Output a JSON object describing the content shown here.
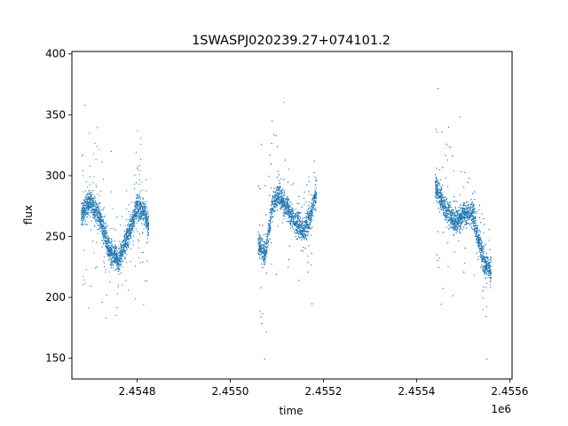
{
  "chart_data": {
    "type": "scatter",
    "title": "1SWASPJ020239.27+074101.2",
    "xlabel": "time",
    "ylabel": "flux",
    "x_offset_label": "1e6",
    "xlim": [
      2454660,
      2455605
    ],
    "ylim": [
      133,
      402
    ],
    "x_ticks": [
      2454800,
      2455000,
      2455200,
      2455400,
      2455600
    ],
    "x_tick_labels": [
      "2.4548",
      "2.4550",
      "2.4552",
      "2.4554",
      "2.4556"
    ],
    "y_ticks": [
      150,
      200,
      250,
      300,
      350,
      400
    ],
    "y_tick_labels": [
      "150",
      "200",
      "250",
      "300",
      "350",
      "400"
    ],
    "grid": false,
    "marker_color": "#1f77b4",
    "segments": [
      {
        "x_start": 2454680,
        "x_end": 2454825,
        "trend_x": [
          2454680,
          2454700,
          2454720,
          2454740,
          2454760,
          2454780,
          2454800,
          2454815,
          2454825
        ],
        "trend_y": [
          268,
          280,
          265,
          240,
          230,
          250,
          275,
          270,
          258
        ]
      },
      {
        "x_start": 2455060,
        "x_end": 2455185,
        "trend_x": [
          2455060,
          2455075,
          2455090,
          2455105,
          2455120,
          2455140,
          2455160,
          2455175,
          2455185
        ],
        "trend_y": [
          245,
          235,
          275,
          285,
          275,
          262,
          255,
          270,
          288
        ]
      },
      {
        "x_start": 2455440,
        "x_end": 2455560,
        "trend_x": [
          2455440,
          2455460,
          2455480,
          2455500,
          2455520,
          2455535,
          2455545,
          2455560
        ],
        "trend_y": [
          292,
          275,
          262,
          268,
          270,
          245,
          228,
          222
        ]
      }
    ]
  }
}
